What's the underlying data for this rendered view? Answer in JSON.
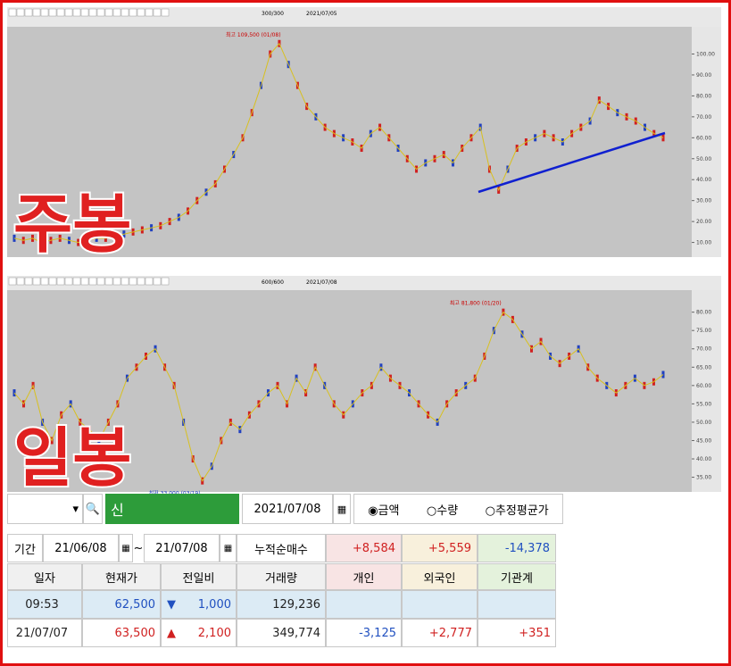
{
  "charts": [
    {
      "label": "주봉",
      "toolbar": [
        "300/300",
        "2021/07/05"
      ],
      "note": "최고 109,500 (01/08)",
      "ylim": [
        3,
        113
      ],
      "yticks": [
        {
          "value": 10,
          "label": "10.00"
        },
        {
          "value": 20,
          "label": "20.00"
        },
        {
          "value": 30,
          "label": "30.00"
        },
        {
          "value": 40,
          "label": "40.00"
        },
        {
          "value": 50,
          "label": "50.00"
        },
        {
          "value": 60,
          "label": "60.00"
        },
        {
          "value": 70,
          "label": "70.00"
        },
        {
          "value": 80,
          "label": "80.00"
        },
        {
          "value": 90,
          "label": "90.00"
        },
        {
          "value": 100,
          "label": "100.00"
        }
      ],
      "values": [
        12,
        11,
        12,
        10,
        11,
        12,
        11,
        10,
        11,
        12,
        12,
        13,
        14,
        15,
        16,
        17,
        18,
        20,
        22,
        25,
        30,
        34,
        38,
        45,
        52,
        60,
        72,
        85,
        100,
        105,
        95,
        85,
        75,
        70,
        65,
        62,
        60,
        58,
        55,
        62,
        65,
        60,
        55,
        50,
        45,
        48,
        50,
        52,
        48,
        55,
        60,
        65,
        45,
        35,
        45,
        55,
        58,
        60,
        62,
        60,
        58,
        62,
        65,
        68,
        78,
        75,
        72,
        70,
        68,
        65,
        62,
        60
      ]
    },
    {
      "label": "일봉",
      "toolbar": [
        "600/600",
        "2021/07/08"
      ],
      "note": "최고 81,800 (01/20)",
      "note2": "최저 33,000 (03/19)",
      "ylim": [
        31,
        86
      ],
      "yticks": [
        {
          "value": 35,
          "label": "35.00"
        },
        {
          "value": 40,
          "label": "40.00"
        },
        {
          "value": 45,
          "label": "45.00"
        },
        {
          "value": 50,
          "label": "50.00"
        },
        {
          "value": 55,
          "label": "55.00"
        },
        {
          "value": 60,
          "label": "60.00"
        },
        {
          "value": 65,
          "label": "65.00"
        },
        {
          "value": 70,
          "label": "70.00"
        },
        {
          "value": 75,
          "label": "75.00"
        },
        {
          "value": 80,
          "label": "80.00"
        }
      ],
      "values": [
        58,
        55,
        60,
        50,
        45,
        52,
        55,
        50,
        48,
        45,
        50,
        55,
        62,
        65,
        68,
        70,
        65,
        60,
        50,
        40,
        34,
        38,
        45,
        50,
        48,
        52,
        55,
        58,
        60,
        55,
        62,
        58,
        65,
        60,
        55,
        52,
        55,
        58,
        60,
        65,
        62,
        60,
        58,
        55,
        52,
        50,
        55,
        58,
        60,
        62,
        68,
        75,
        80,
        78,
        74,
        70,
        72,
        68,
        66,
        68,
        70,
        65,
        62,
        60,
        58,
        60,
        62,
        60,
        61,
        63
      ]
    }
  ],
  "controls": {
    "shin": "신",
    "date": "2021/07/08",
    "options": [
      "금액",
      "수량",
      "추정평균가"
    ]
  },
  "summary": {
    "label": "기간",
    "from": "21/06/08",
    "sep": "~",
    "to": "21/07/08",
    "metric": "누적순매수",
    "values": [
      "+8,584",
      "+5,559",
      "-14,378"
    ]
  },
  "table": {
    "headers": [
      "일자",
      "현재가",
      "전일비",
      "거래량",
      "개인",
      "외국인",
      "기관계"
    ],
    "rows": [
      {
        "date": "09:53",
        "price": "62,500",
        "dir": "▼",
        "change": "1,000",
        "volume": "129,236"
      },
      {
        "date": "21/07/07",
        "price": "63,500",
        "dir": "▲",
        "change": "2,100",
        "volume": "349,774",
        "indiv": "-3,125",
        "foreign": "+2,777",
        "inst": "+351"
      }
    ]
  }
}
